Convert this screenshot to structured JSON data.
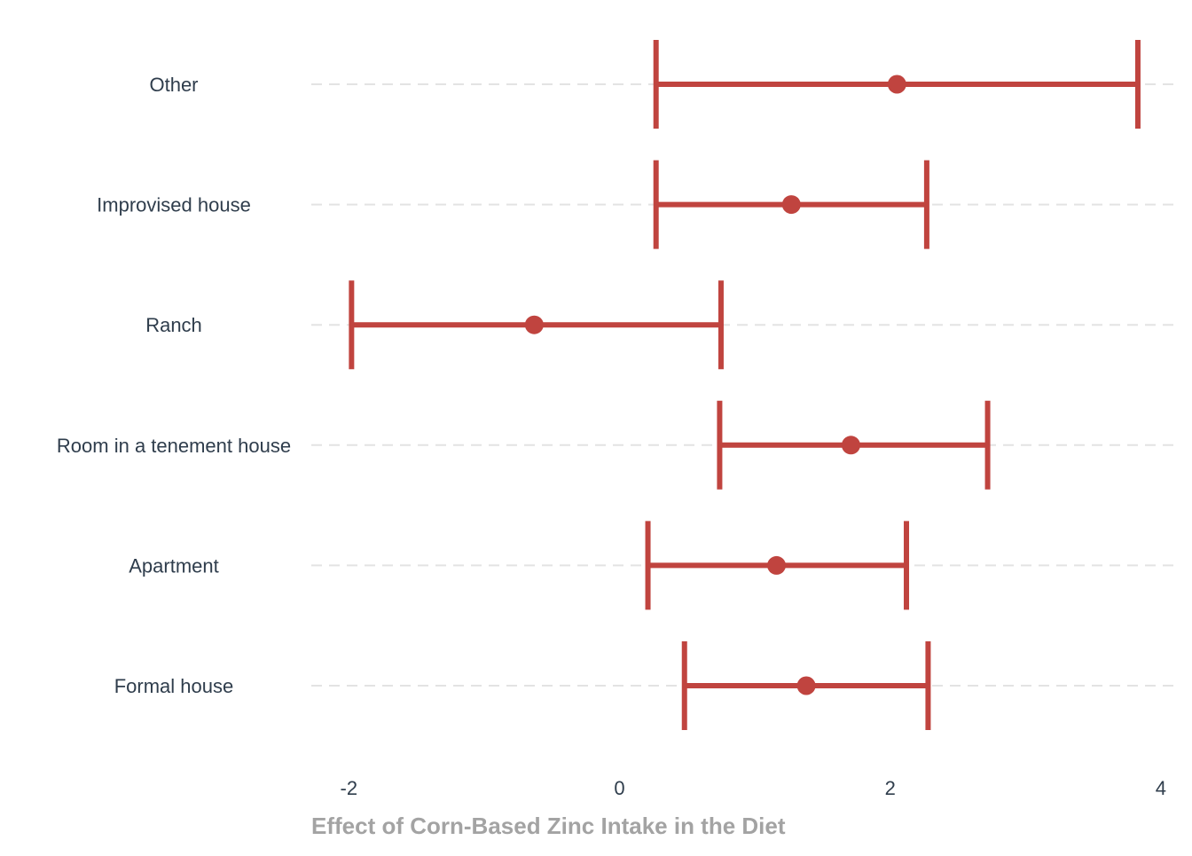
{
  "chart_data": {
    "type": "errorbar",
    "orientation": "horizontal",
    "title": "",
    "xlabel": "Effect of Corn-Based Zinc Intake in the Diet",
    "ylabel": "",
    "xlim": [
      -2.3,
      4.05
    ],
    "xticks": [
      -2,
      0,
      2,
      4
    ],
    "xtick_labels": [
      "-2",
      "0",
      "2",
      "4"
    ],
    "grid": "horizontal dashed",
    "legend": "none",
    "color": "#c0443f",
    "categories": [
      "Other",
      "Improvised house",
      "Ranch",
      "Room in a tenement house",
      "Apartment",
      "Formal house"
    ],
    "estimates": [
      2.05,
      1.27,
      -0.63,
      1.71,
      1.16,
      1.38
    ],
    "lower": [
      0.27,
      0.27,
      -1.98,
      0.74,
      0.21,
      0.48
    ],
    "upper": [
      3.83,
      2.27,
      0.75,
      2.72,
      2.12,
      2.28
    ]
  }
}
